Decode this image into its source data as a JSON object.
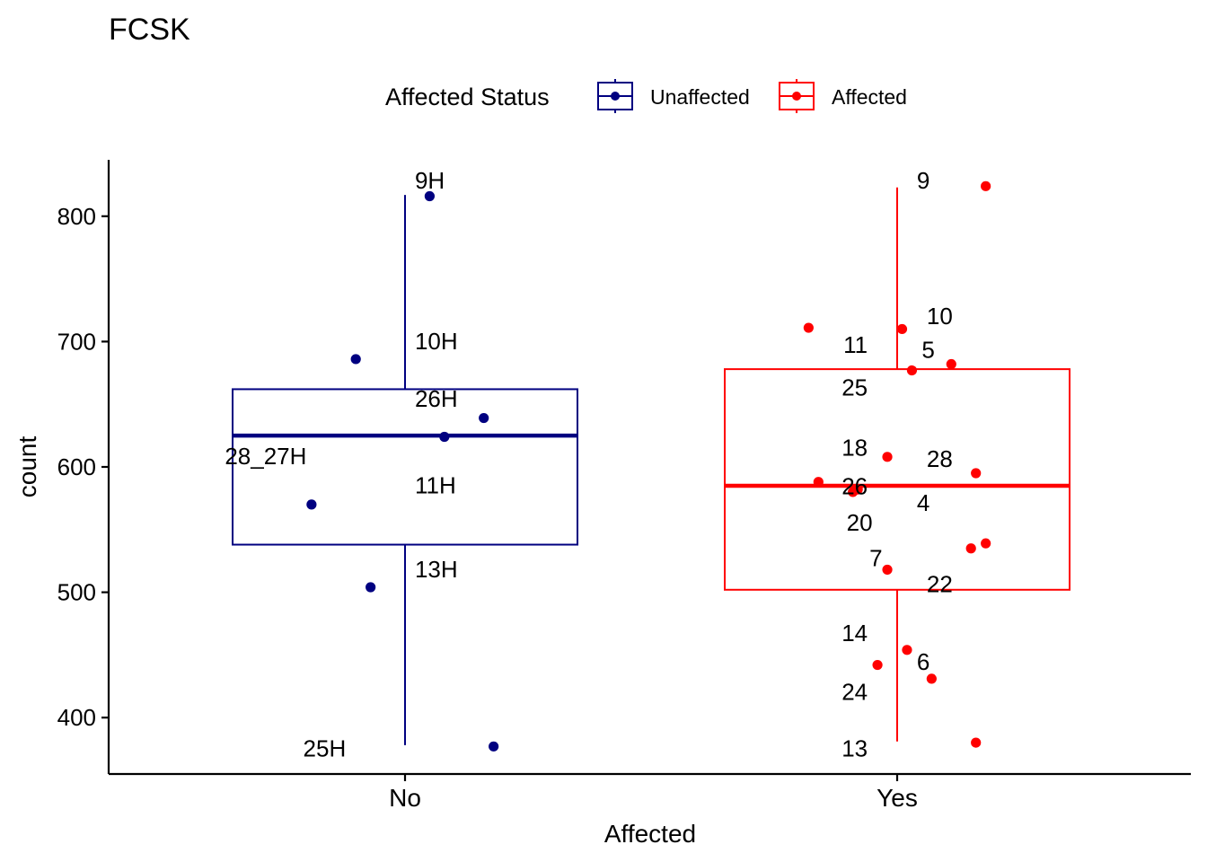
{
  "chart_data": {
    "type": "boxplot",
    "title": "FCSK",
    "xlabel": "Affected",
    "ylabel": "count",
    "ylim": [
      355,
      845
    ],
    "yticks": [
      400,
      500,
      600,
      700,
      800
    ],
    "categories": [
      "No",
      "Yes"
    ],
    "legend": {
      "title": "Affected Status",
      "position": "top",
      "entries": [
        {
          "label": "Unaffected",
          "color": "#000080"
        },
        {
          "label": "Affected",
          "color": "#FF0000"
        }
      ]
    },
    "series": [
      {
        "name": "Unaffected",
        "category": "No",
        "color": "#000080",
        "box": {
          "lower_whisker": 378,
          "q1": 538,
          "median": 625,
          "q3": 662,
          "upper_whisker": 817
        },
        "points": [
          {
            "x": 0.05,
            "y": 816
          },
          {
            "x": -0.1,
            "y": 686
          },
          {
            "x": 0.16,
            "y": 639
          },
          {
            "x": 0.08,
            "y": 624
          },
          {
            "x": -0.19,
            "y": 570
          },
          {
            "x": -0.07,
            "y": 504
          },
          {
            "x": 0.18,
            "y": 377
          }
        ],
        "labels": [
          {
            "text": "9H",
            "x": 0.02,
            "y": 822
          },
          {
            "text": "10H",
            "x": 0.02,
            "y": 694
          },
          {
            "text": "26H",
            "x": 0.02,
            "y": 648
          },
          {
            "text": "28_27H",
            "x": -0.2,
            "y": 602
          },
          {
            "text": "11H",
            "x": 0.02,
            "y": 579
          },
          {
            "text": "13H",
            "x": 0.02,
            "y": 512
          },
          {
            "text": "25H",
            "x": -0.12,
            "y": 369
          }
        ]
      },
      {
        "name": "Affected",
        "category": "Yes",
        "color": "#FF0000",
        "box": {
          "lower_whisker": 381,
          "q1": 502,
          "median": 585,
          "q3": 678,
          "upper_whisker": 823
        },
        "points": [
          {
            "x": 0.18,
            "y": 824
          },
          {
            "x": -0.18,
            "y": 711
          },
          {
            "x": 0.01,
            "y": 710
          },
          {
            "x": 0.11,
            "y": 682
          },
          {
            "x": 0.03,
            "y": 677
          },
          {
            "x": -0.02,
            "y": 608
          },
          {
            "x": 0.16,
            "y": 595
          },
          {
            "x": -0.16,
            "y": 588
          },
          {
            "x": -0.08,
            "y": 582
          },
          {
            "x": -0.09,
            "y": 580
          },
          {
            "x": 0.18,
            "y": 539
          },
          {
            "x": 0.15,
            "y": 535
          },
          {
            "x": -0.02,
            "y": 518
          },
          {
            "x": 0.02,
            "y": 454
          },
          {
            "x": 0.07,
            "y": 431
          },
          {
            "x": -0.04,
            "y": 442
          },
          {
            "x": 0.16,
            "y": 380
          }
        ],
        "labels": [
          {
            "text": "9",
            "x": 0.04,
            "y": 822
          },
          {
            "text": "10",
            "x": 0.06,
            "y": 714
          },
          {
            "text": "11",
            "x": -0.06,
            "y": 691
          },
          {
            "text": "5",
            "x": 0.05,
            "y": 687
          },
          {
            "text": "25",
            "x": -0.06,
            "y": 657
          },
          {
            "text": "18",
            "x": -0.06,
            "y": 609
          },
          {
            "text": "28",
            "x": 0.06,
            "y": 600
          },
          {
            "text": "26",
            "x": -0.06,
            "y": 578
          },
          {
            "text": "4",
            "x": 0.04,
            "y": 565
          },
          {
            "text": "20",
            "x": -0.05,
            "y": 549
          },
          {
            "text": "7",
            "x": -0.03,
            "y": 521
          },
          {
            "text": "22",
            "x": 0.06,
            "y": 500
          },
          {
            "text": "14",
            "x": -0.06,
            "y": 461
          },
          {
            "text": "6",
            "x": 0.04,
            "y": 438
          },
          {
            "text": "24",
            "x": -0.06,
            "y": 414
          },
          {
            "text": "13",
            "x": -0.06,
            "y": 369
          }
        ]
      }
    ]
  }
}
